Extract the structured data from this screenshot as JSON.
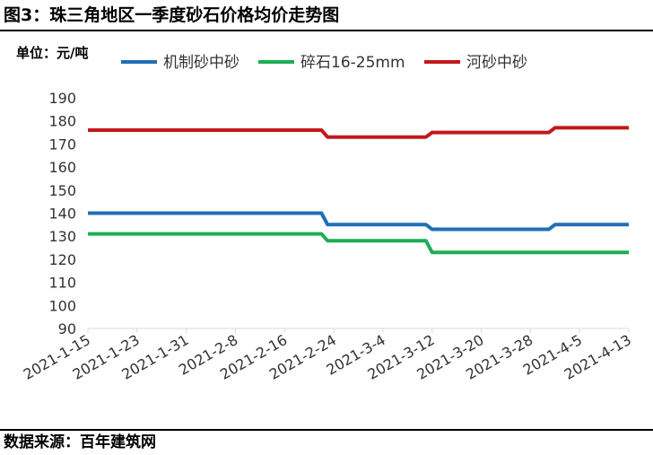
{
  "header": {
    "title": "图3：珠三角地区一季度砂石价格均价走势图"
  },
  "footer": {
    "source": "数据来源：百年建筑网"
  },
  "chart_data": {
    "type": "line",
    "unit_label": "单位：元/吨",
    "title": "",
    "xlabel": "",
    "ylabel": "",
    "ylim": [
      90,
      190
    ],
    "yticks": [
      90,
      100,
      110,
      120,
      130,
      140,
      150,
      160,
      170,
      180,
      190
    ],
    "grid": false,
    "legend_position": "top",
    "xlim": [
      "2021-1-15",
      "2021-4-13"
    ],
    "xticks": [
      "2021-1-15",
      "2021-1-23",
      "2021-1-31",
      "2021-2-8",
      "2021-2-16",
      "2021-2-24",
      "2021-3-4",
      "2021-3-12",
      "2021-3-20",
      "2021-3-28",
      "2021-4-5",
      "2021-4-13"
    ],
    "series": [
      {
        "name": "机制砂中砂",
        "color": "#1F6FB5",
        "x": [
          "2021-1-15",
          "2021-2-22",
          "2021-2-23",
          "2021-3-11",
          "2021-3-12",
          "2021-3-31",
          "2021-4-1",
          "2021-4-13"
        ],
        "y": [
          140,
          140,
          135,
          135,
          133,
          133,
          135,
          135
        ]
      },
      {
        "name": "碎石16-25mm",
        "color": "#1DAF55",
        "x": [
          "2021-1-15",
          "2021-2-22",
          "2021-2-23",
          "2021-3-11",
          "2021-3-12",
          "2021-4-13"
        ],
        "y": [
          131,
          131,
          128,
          128,
          123,
          123
        ]
      },
      {
        "name": "河砂中砂",
        "color": "#C0191C",
        "x": [
          "2021-1-15",
          "2021-2-22",
          "2021-2-23",
          "2021-3-11",
          "2021-3-12",
          "2021-3-31",
          "2021-4-1",
          "2021-4-13"
        ],
        "y": [
          176,
          176,
          173,
          173,
          175,
          175,
          177,
          177
        ]
      }
    ]
  }
}
